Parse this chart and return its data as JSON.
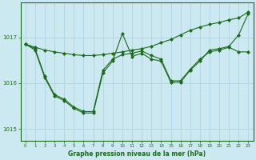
{
  "title": "Graphe pression niveau de la mer (hPa)",
  "background_color": "#cce8f0",
  "grid_color": "#aacfdc",
  "line_color": "#1a6b1a",
  "xlim": [
    -0.5,
    23.5
  ],
  "ylim": [
    1014.75,
    1017.75
  ],
  "yticks": [
    1015,
    1016,
    1017
  ],
  "xticks": [
    0,
    1,
    2,
    3,
    4,
    5,
    6,
    7,
    8,
    9,
    10,
    11,
    12,
    13,
    14,
    15,
    16,
    17,
    18,
    19,
    20,
    21,
    22,
    23
  ],
  "series1": [
    1016.85,
    1016.78,
    1016.72,
    1016.68,
    1016.65,
    1016.62,
    1016.6,
    1016.6,
    1016.62,
    1016.65,
    1016.68,
    1016.72,
    1016.75,
    1016.8,
    1016.88,
    1016.95,
    1017.05,
    1017.15,
    1017.22,
    1017.28,
    1017.32,
    1017.38,
    1017.42,
    1017.55
  ],
  "series2": [
    1016.85,
    1016.75,
    1016.15,
    1015.75,
    1015.65,
    1015.48,
    1015.38,
    1015.38,
    1016.28,
    1016.52,
    1016.62,
    1016.65,
    1016.7,
    1016.6,
    1016.52,
    1016.05,
    1016.05,
    1016.3,
    1016.52,
    1016.68,
    1016.72,
    1016.78,
    1016.68,
    1016.68
  ],
  "series3": [
    1016.85,
    1016.72,
    1016.12,
    1015.72,
    1015.62,
    1015.45,
    1015.35,
    1015.35,
    1016.22,
    1016.48,
    1017.08,
    1016.58,
    1016.65,
    1016.52,
    1016.48,
    1016.02,
    1016.02,
    1016.28,
    1016.48,
    1016.72,
    1016.75,
    1016.8,
    1017.05,
    1017.52
  ]
}
